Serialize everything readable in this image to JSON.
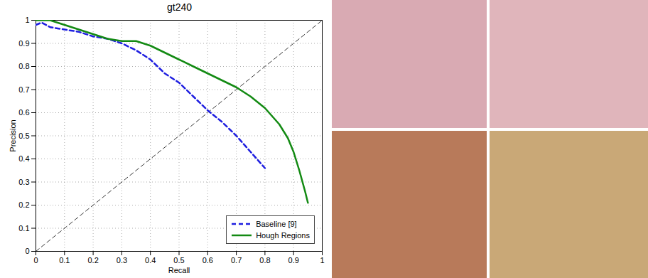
{
  "chart_data": {
    "type": "line",
    "title": "gt240",
    "x_label": "Recall",
    "y_label": "Precision",
    "xlim": [
      0,
      1
    ],
    "ylim": [
      0,
      1
    ],
    "xticks": [
      0,
      0.1,
      0.2,
      0.3,
      0.4,
      0.5,
      0.6,
      0.7,
      0.8,
      0.9,
      1
    ],
    "yticks": [
      0,
      0.1,
      0.2,
      0.3,
      0.4,
      0.5,
      0.6,
      0.7,
      0.8,
      0.9,
      1
    ],
    "grid": true,
    "legend": "lower right",
    "series": [
      {
        "name": "Baseline [9]",
        "color": "#1f1fe0",
        "line_style": "dashed",
        "x": [
          0,
          0.02,
          0.05,
          0.1,
          0.15,
          0.2,
          0.25,
          0.3,
          0.35,
          0.4,
          0.45,
          0.5,
          0.55,
          0.6,
          0.65,
          0.7,
          0.75,
          0.8
        ],
        "values": [
          0.98,
          0.99,
          0.97,
          0.96,
          0.95,
          0.93,
          0.92,
          0.9,
          0.87,
          0.83,
          0.77,
          0.73,
          0.67,
          0.61,
          0.56,
          0.5,
          0.43,
          0.36
        ]
      },
      {
        "name": "Hough Regions",
        "color": "#138a13",
        "line_style": "solid",
        "x": [
          0,
          0.05,
          0.1,
          0.15,
          0.2,
          0.25,
          0.3,
          0.35,
          0.4,
          0.45,
          0.5,
          0.55,
          0.6,
          0.65,
          0.7,
          0.75,
          0.8,
          0.85,
          0.88,
          0.9,
          0.92,
          0.94,
          0.95
        ],
        "values": [
          1,
          1,
          0.98,
          0.96,
          0.94,
          0.92,
          0.91,
          0.91,
          0.89,
          0.86,
          0.83,
          0.8,
          0.77,
          0.74,
          0.71,
          0.67,
          0.62,
          0.55,
          0.49,
          0.43,
          0.35,
          0.26,
          0.21
        ]
      }
    ],
    "diagonal": {
      "x": [
        0,
        1
      ],
      "values": [
        0,
        1
      ],
      "color": "#000000",
      "line_style": "dashed"
    }
  }
}
